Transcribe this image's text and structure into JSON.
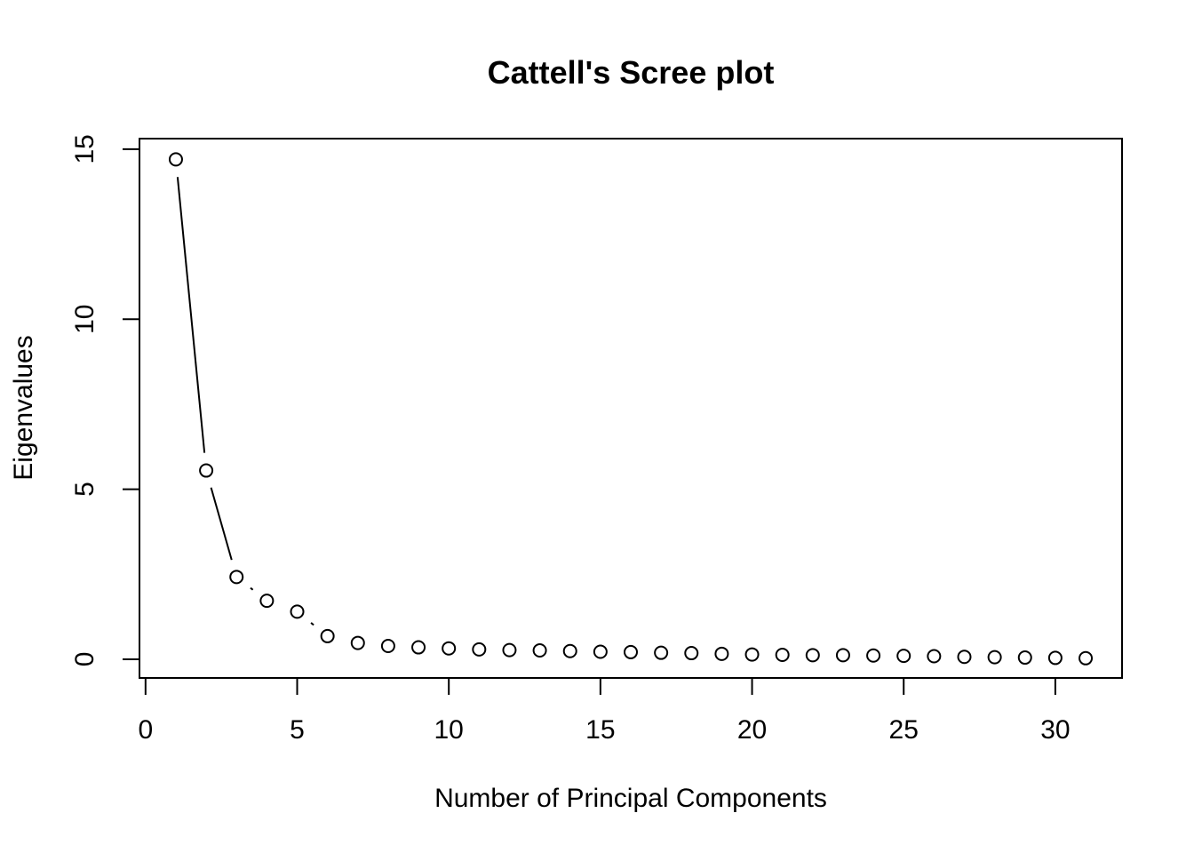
{
  "page": {
    "background_color": "#ffffff",
    "foreground_color": "#000000"
  },
  "chart_data": {
    "type": "line",
    "style": "R base scree plot, type='b' (points joined by gapped solid segments, open circle markers)",
    "title": "Cattell's Scree plot",
    "xlabel": "Number of Principal Components",
    "ylabel": "Eigenvalues",
    "x": [
      1,
      2,
      3,
      4,
      5,
      6,
      7,
      8,
      9,
      10,
      11,
      12,
      13,
      14,
      15,
      16,
      17,
      18,
      19,
      20,
      21,
      22,
      23,
      24,
      25,
      26,
      27,
      28,
      29,
      30,
      31
    ],
    "series": [
      {
        "name": "Eigenvalues",
        "values": [
          14.7,
          5.55,
          2.42,
          1.72,
          1.4,
          0.68,
          0.48,
          0.39,
          0.35,
          0.32,
          0.29,
          0.27,
          0.26,
          0.24,
          0.22,
          0.21,
          0.19,
          0.18,
          0.16,
          0.14,
          0.13,
          0.12,
          0.12,
          0.11,
          0.1,
          0.09,
          0.07,
          0.06,
          0.05,
          0.04,
          0.03
        ]
      }
    ],
    "x_ticks": [
      0,
      5,
      10,
      15,
      20,
      25,
      30
    ],
    "y_ticks": [
      0,
      5,
      10,
      15
    ],
    "xlim": [
      -0.2,
      32.2
    ],
    "ylim": [
      -0.55,
      15.31
    ],
    "grid": false,
    "legend": false,
    "marker": {
      "shape": "open-circle",
      "radius_px": 7
    },
    "colors": {
      "line": "#000000",
      "marker_stroke": "#000000",
      "marker_fill": "none",
      "box": "#000000",
      "background": "#ffffff"
    }
  }
}
